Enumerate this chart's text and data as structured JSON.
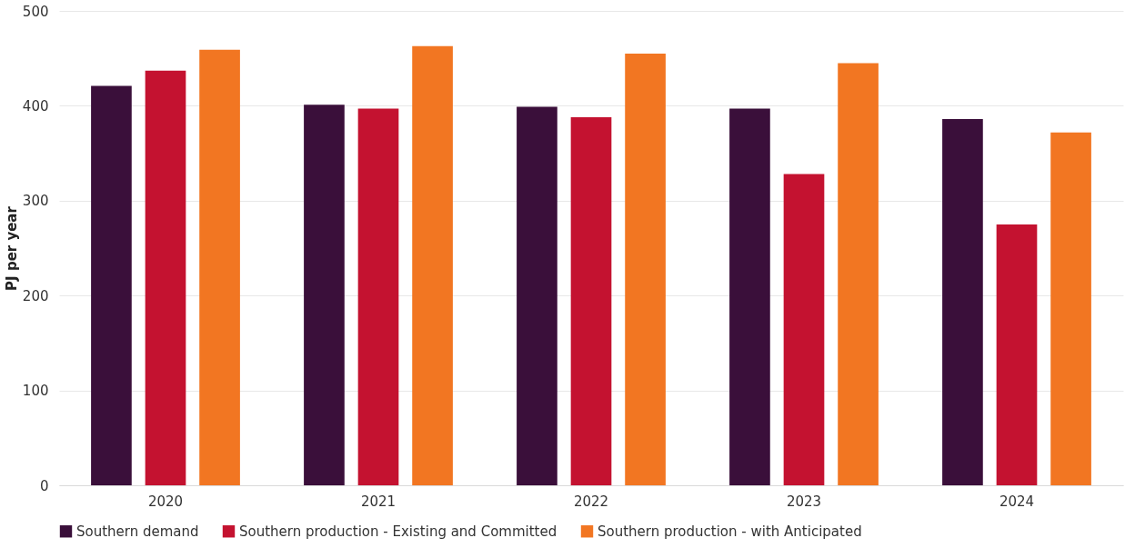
{
  "chart_data": {
    "type": "bar",
    "ylabel": "PJ per year",
    "categories": [
      "2020",
      "2021",
      "2022",
      "2023",
      "2024"
    ],
    "series": [
      {
        "name": "Southern demand",
        "color": "#3a0f3a",
        "values": [
          421,
          401,
          399,
          397,
          386
        ]
      },
      {
        "name": "Southern production - Existing and Committed",
        "color": "#c41230",
        "values": [
          437,
          397,
          388,
          328,
          275
        ]
      },
      {
        "name": "Southern production - with Anticipated",
        "color": "#f27622",
        "values": [
          459,
          463,
          455,
          445,
          372
        ]
      }
    ],
    "ylim": [
      0,
      500
    ],
    "yticks": [
      0,
      100,
      200,
      300,
      400,
      500
    ],
    "grid": "y",
    "legend": "bottom"
  }
}
